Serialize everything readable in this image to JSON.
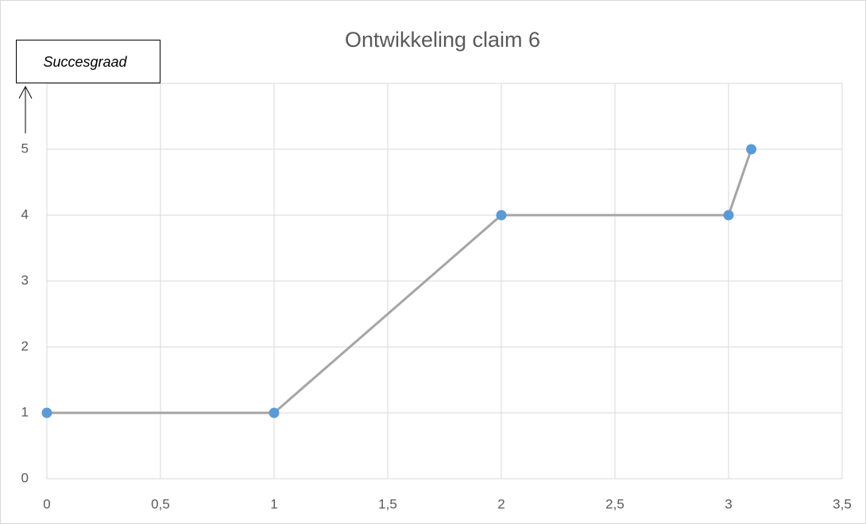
{
  "chart_data": {
    "type": "line",
    "title": "Ontwikkeling claim 6",
    "annotation": "Succesgraad",
    "x": [
      0,
      1,
      2,
      3,
      3.1
    ],
    "values": [
      1,
      1,
      4,
      4,
      5
    ],
    "color": "#5b9bd5",
    "line_color": "#a5a5a5",
    "xlim": [
      0,
      3.5
    ],
    "xticks": [
      0,
      {
        "value": 0.5,
        "label": "0,5"
      },
      1,
      {
        "value": 1.5,
        "label": "1,5"
      },
      2,
      {
        "value": 2.5,
        "label": "2,5"
      },
      3,
      {
        "value": 3.5,
        "label": "3,5"
      }
    ],
    "ylim": [
      0,
      6
    ],
    "yticks": [
      0,
      1,
      2,
      3,
      4,
      5
    ],
    "grid": true
  }
}
